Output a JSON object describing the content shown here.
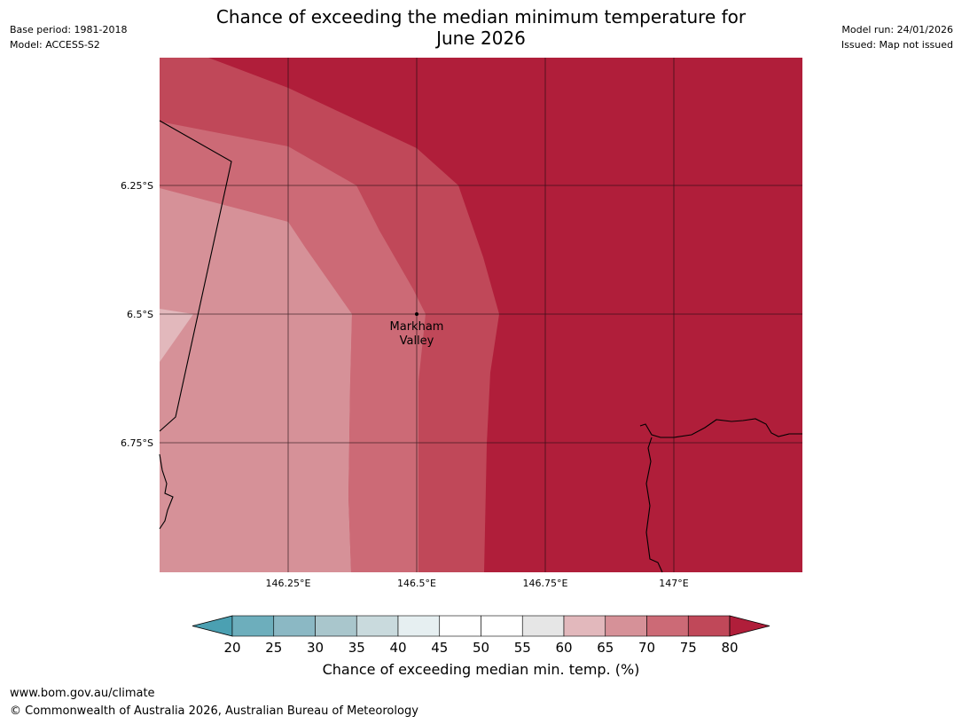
{
  "header": {
    "base_period": "Base period: 1981-2018",
    "model": "Model: ACCESS-S2",
    "model_run": "Model run: 24/01/2026",
    "issued": "Issued: Map not issued",
    "title_line1": "Chance of exceeding the median minimum temperature for",
    "title_line2": "June 2026"
  },
  "map": {
    "lat_labels": [
      "6.25°S",
      "6.5°S",
      "6.75°S"
    ],
    "lon_labels": [
      "146.25°E",
      "146.5°E",
      "146.75°E",
      "147°E"
    ],
    "place": {
      "name_line1": "Markham",
      "name_line2": "Valley"
    },
    "zones": [
      {
        "range": "80+",
        "color": "#b01e3a"
      },
      {
        "range": "75-80",
        "color": "#c04859"
      },
      {
        "range": "70-75",
        "color": "#cc6a76"
      },
      {
        "range": "65-70",
        "color": "#d69198"
      },
      {
        "range": "60-65",
        "color": "#e2b8bc"
      }
    ]
  },
  "colorbar": {
    "ticks": [
      "20",
      "25",
      "30",
      "35",
      "40",
      "45",
      "50",
      "55",
      "60",
      "65",
      "70",
      "75",
      "80"
    ],
    "colors": [
      "#4ba0b2",
      "#6daebc",
      "#8bb8c4",
      "#a9c6cc",
      "#c9dadd",
      "#e6eff1",
      "#ffffff",
      "#ffffff",
      "#e6e6e6",
      "#e2b8bc",
      "#d69198",
      "#cc6a76",
      "#c04859",
      "#b01e3a"
    ],
    "label": "Chance of exceeding median min. temp. (%)"
  },
  "footer": {
    "url": "www.bom.gov.au/climate",
    "copyright": "© Commonwealth of Australia 2026, Australian Bureau of Meteorology"
  }
}
